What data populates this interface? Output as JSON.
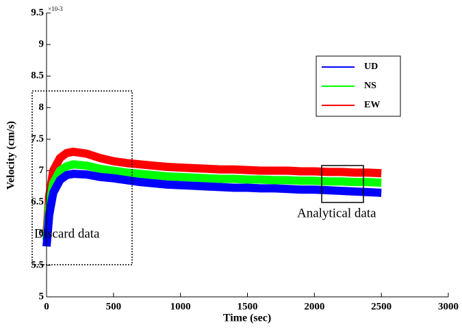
{
  "chart_data": {
    "type": "line",
    "xlabel": "Time (sec)",
    "ylabel": "Velocity (cm/s)",
    "multiplier": "×10-3",
    "annotations": [
      "Discard data",
      "Analytical data"
    ],
    "x": [
      0,
      20,
      50,
      100,
      150,
      200,
      300,
      400,
      500,
      600,
      700,
      800,
      900,
      1000,
      1100,
      1200,
      1300,
      1400,
      1500,
      1600,
      1700,
      1800,
      1900,
      2000,
      2100,
      2200,
      2300,
      2400,
      2500
    ],
    "series": [
      {
        "name": "UD",
        "color": "#0000ff",
        "values": [
          5.8,
          6.3,
          6.65,
          6.85,
          6.93,
          6.95,
          6.94,
          6.9,
          6.88,
          6.85,
          6.82,
          6.8,
          6.78,
          6.77,
          6.76,
          6.75,
          6.74,
          6.73,
          6.73,
          6.72,
          6.72,
          6.71,
          6.7,
          6.7,
          6.69,
          6.68,
          6.67,
          6.66,
          6.65
        ]
      },
      {
        "name": "NS",
        "color": "#00ff00",
        "values": [
          5.9,
          6.45,
          6.8,
          7.0,
          7.07,
          7.1,
          7.08,
          7.03,
          7.0,
          6.97,
          6.95,
          6.93,
          6.91,
          6.9,
          6.89,
          6.88,
          6.87,
          6.87,
          6.86,
          6.86,
          6.85,
          6.85,
          6.84,
          6.84,
          6.83,
          6.83,
          6.82,
          6.82,
          6.81
        ]
      },
      {
        "name": "EW",
        "color": "#ff0000",
        "values": [
          6.0,
          6.6,
          7.0,
          7.2,
          7.28,
          7.3,
          7.27,
          7.2,
          7.15,
          7.12,
          7.1,
          7.08,
          7.06,
          7.05,
          7.04,
          7.03,
          7.02,
          7.02,
          7.01,
          7.0,
          7.0,
          7.0,
          6.99,
          6.99,
          6.98,
          6.98,
          6.97,
          6.97,
          6.96
        ]
      }
    ],
    "xlim": [
      0,
      3000
    ],
    "xticks": [
      0,
      500,
      1000,
      1500,
      2000,
      2500,
      3000
    ],
    "ylim": [
      5,
      9.5
    ],
    "yticks": [
      5,
      5.5,
      6,
      6.5,
      7,
      7.5,
      8,
      8.5,
      9,
      9.5
    ]
  }
}
